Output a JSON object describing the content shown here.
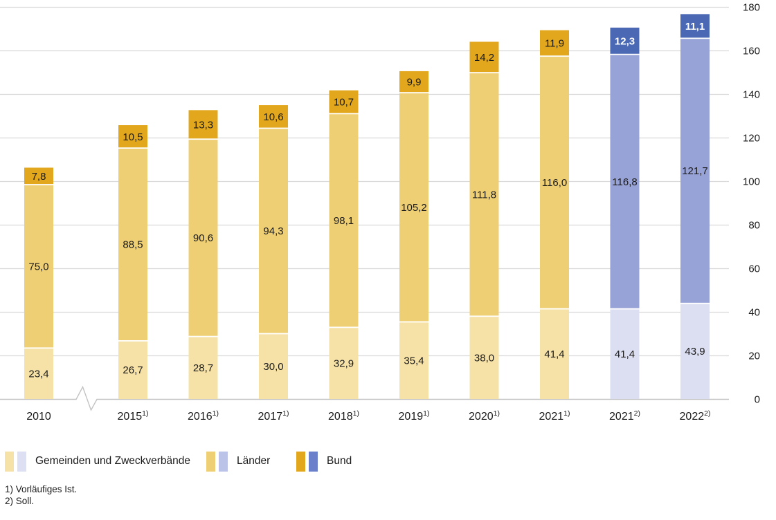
{
  "chart_data": {
    "type": "bar",
    "subtype": "stacked-vertical",
    "title": "",
    "decimal_separator": ",",
    "grid": true,
    "axis_break_after_first_category": true,
    "y_axis": {
      "min": 0,
      "max": 180,
      "step": 20,
      "side": "right",
      "tick_labels": [
        "0",
        "20",
        "40",
        "60",
        "80",
        "100",
        "120",
        "140",
        "160",
        "180"
      ]
    },
    "categories": [
      {
        "label": "2010",
        "sup": "",
        "plan": false
      },
      {
        "label": "2015",
        "sup": "1)",
        "plan": false
      },
      {
        "label": "2016",
        "sup": "1)",
        "plan": false
      },
      {
        "label": "2017",
        "sup": "1)",
        "plan": false
      },
      {
        "label": "2018",
        "sup": "1)",
        "plan": false
      },
      {
        "label": "2019",
        "sup": "1)",
        "plan": false
      },
      {
        "label": "2020",
        "sup": "1)",
        "plan": false
      },
      {
        "label": "2021",
        "sup": "1)",
        "plan": false
      },
      {
        "label": "2021",
        "sup": "2)",
        "plan": true
      },
      {
        "label": "2022",
        "sup": "2)",
        "plan": true
      }
    ],
    "series": [
      {
        "name": "Gemeinden und Zweckverbände",
        "values": [
          23.4,
          26.7,
          28.7,
          30.0,
          32.9,
          35.4,
          38.0,
          41.4,
          41.4,
          43.9
        ]
      },
      {
        "name": "Länder",
        "values": [
          75.0,
          88.5,
          90.6,
          94.3,
          98.1,
          105.2,
          111.8,
          116.0,
          116.8,
          121.7
        ]
      },
      {
        "name": "Bund",
        "values": [
          7.8,
          10.5,
          13.3,
          10.6,
          10.7,
          9.9,
          14.2,
          11.9,
          12.3,
          11.1
        ]
      }
    ],
    "colors": {
      "ist": [
        "#f6e2a6",
        "#efcf74",
        "#e2a71c"
      ],
      "soll": [
        "#dcdff2",
        "#97a2d6",
        "#4a68b4"
      ],
      "grid": "#d9d9d9",
      "baseline": "#c3c3c3",
      "text": "#1a1a1a",
      "plan_bund_label": "#ffffff"
    },
    "legend_position": "bottom"
  },
  "legend": {
    "swatch_colors": [
      {
        "ist": "#f6e2a6",
        "soll": "#dde0f3"
      },
      {
        "ist": "#efcf74",
        "soll": "#bcc3e8"
      },
      {
        "ist": "#e2a71c",
        "soll": "#6b80ca"
      }
    ]
  },
  "footnotes": [
    "1) Vorläufiges Ist.",
    "2) Soll."
  ]
}
